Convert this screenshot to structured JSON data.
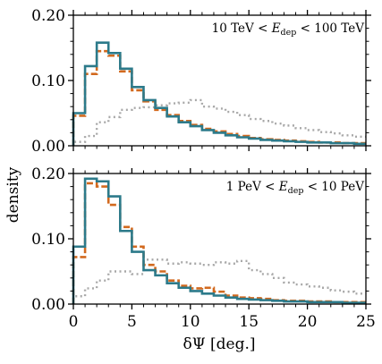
{
  "figure": {
    "xlabel": "δΨ [deg.]",
    "ylabel": "density"
  },
  "chart_data": [
    {
      "type": "line",
      "annotation": "10 TeV < E_dep < 100 TeV",
      "annotation_parts": {
        "lo": "10 TeV < ",
        "var": "E",
        "sub": "dep",
        "hi": " < 100 TeV"
      },
      "annotation_position": "top-right",
      "xlim": [
        0,
        25
      ],
      "ylim": [
        0,
        0.2
      ],
      "xticks": [
        "0",
        "5",
        "10",
        "15",
        "20",
        "25"
      ],
      "yticks": [
        "0.00",
        "0.10",
        "0.20"
      ],
      "bin_edges": [
        0,
        1,
        2,
        3,
        4,
        5,
        6,
        7,
        8,
        9,
        10,
        11,
        12,
        13,
        14,
        15,
        16,
        17,
        18,
        19,
        20,
        21,
        22,
        23,
        24,
        25
      ],
      "series": [
        {
          "style": "solid",
          "color": "#2c7a8a",
          "values": [
            0.05,
            0.122,
            0.158,
            0.142,
            0.118,
            0.09,
            0.07,
            0.058,
            0.045,
            0.036,
            0.03,
            0.024,
            0.02,
            0.016,
            0.013,
            0.011,
            0.009,
            0.008,
            0.007,
            0.006,
            0.005,
            0.005,
            0.004,
            0.004,
            0.003
          ]
        },
        {
          "style": "dashed",
          "color": "#d2691e",
          "values": [
            0.046,
            0.11,
            0.145,
            0.138,
            0.114,
            0.085,
            0.068,
            0.055,
            0.047,
            0.038,
            0.032,
            0.026,
            0.022,
            0.018,
            0.015,
            0.012,
            0.01,
            0.009,
            0.008,
            0.007,
            0.006,
            0.005,
            0.005,
            0.004,
            0.004
          ]
        },
        {
          "style": "dotted",
          "color": "#a8a8a8",
          "values": [
            0.006,
            0.015,
            0.036,
            0.044,
            0.055,
            0.058,
            0.059,
            0.062,
            0.065,
            0.066,
            0.07,
            0.06,
            0.057,
            0.052,
            0.047,
            0.041,
            0.038,
            0.034,
            0.031,
            0.027,
            0.024,
            0.021,
            0.019,
            0.016,
            0.014
          ]
        }
      ]
    },
    {
      "type": "line",
      "annotation": "1 PeV < E_dep < 10 PeV",
      "annotation_parts": {
        "lo": "1 PeV < ",
        "var": "E",
        "sub": "dep",
        "hi": " < 10 PeV"
      },
      "annotation_position": "top-right",
      "xlim": [
        0,
        25
      ],
      "ylim": [
        0,
        0.2
      ],
      "xticks": [
        "0",
        "5",
        "10",
        "15",
        "20",
        "25"
      ],
      "yticks": [
        "0.00",
        "0.10",
        "0.20"
      ],
      "bin_edges": [
        0,
        1,
        2,
        3,
        4,
        5,
        6,
        7,
        8,
        9,
        10,
        11,
        12,
        13,
        14,
        15,
        16,
        17,
        18,
        19,
        20,
        21,
        22,
        23,
        24,
        25
      ],
      "series": [
        {
          "style": "solid",
          "color": "#2c7a8a",
          "values": [
            0.088,
            0.192,
            0.188,
            0.165,
            0.112,
            0.08,
            0.052,
            0.044,
            0.032,
            0.025,
            0.02,
            0.016,
            0.013,
            0.01,
            0.008,
            0.007,
            0.006,
            0.005,
            0.004,
            0.004,
            0.003,
            0.003,
            0.003,
            0.002,
            0.002
          ]
        },
        {
          "style": "dashed",
          "color": "#d2691e",
          "values": [
            0.072,
            0.185,
            0.18,
            0.152,
            0.118,
            0.088,
            0.06,
            0.05,
            0.036,
            0.028,
            0.024,
            0.025,
            0.019,
            0.013,
            0.01,
            0.009,
            0.008,
            0.006,
            0.005,
            0.005,
            0.004,
            0.004,
            0.003,
            0.003,
            0.003
          ]
        },
        {
          "style": "dotted",
          "color": "#a8a8a8",
          "values": [
            0.012,
            0.024,
            0.036,
            0.05,
            0.05,
            0.046,
            0.068,
            0.068,
            0.062,
            0.064,
            0.062,
            0.06,
            0.064,
            0.062,
            0.066,
            0.052,
            0.046,
            0.04,
            0.033,
            0.03,
            0.027,
            0.025,
            0.021,
            0.019,
            0.016
          ]
        }
      ]
    }
  ]
}
